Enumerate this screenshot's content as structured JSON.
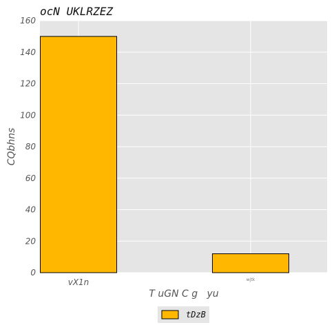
{
  "chart_data": {
    "type": "bar",
    "title": "ocN UKLRZEZ",
    "xlabel": "T uGN C g   yu",
    "ylabel": "CQbhns",
    "categories": [
      "vX1n",
      "wjtk"
    ],
    "series": [
      {
        "name": "tDzB",
        "values": [
          150,
          12
        ]
      }
    ],
    "ylim": [
      0,
      160
    ],
    "yticks": [
      0,
      20,
      40,
      60,
      80,
      100,
      120,
      140,
      160
    ],
    "grid": true,
    "legend_position": "bottom-center",
    "colors": {
      "bar": "#ffb700",
      "plot_background": "#e5e5e5",
      "grid": "#ffffff"
    }
  }
}
